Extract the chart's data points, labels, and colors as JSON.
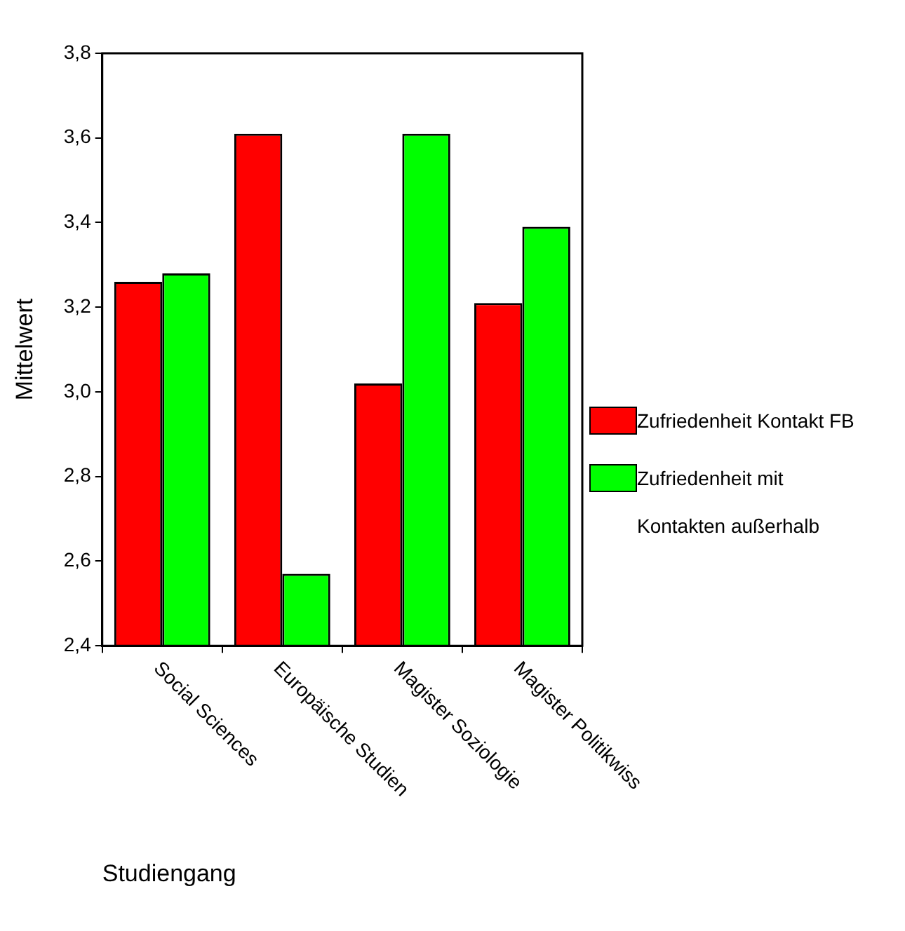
{
  "chart_data": {
    "type": "bar",
    "xlabel": "Studiengang",
    "ylabel": "Mittelwert",
    "categories": [
      "Social Sciences",
      "Europäische Studien",
      "Magister Soziologie",
      "Magister Politikwiss"
    ],
    "series": [
      {
        "name": "Zufriedenheit Kontakt FB",
        "color": "#ff0000",
        "values": [
          3.26,
          3.61,
          3.02,
          3.21
        ]
      },
      {
        "name": "Zufriedenheit mit Kontakten außerhalb",
        "color": "#00ff00",
        "values": [
          3.28,
          2.57,
          3.61,
          3.39
        ]
      }
    ],
    "ylim": [
      2.4,
      3.8
    ],
    "yticks": [
      {
        "value": 2.4,
        "label": "2,4"
      },
      {
        "value": 2.6,
        "label": "2,6"
      },
      {
        "value": 2.8,
        "label": "2,8"
      },
      {
        "value": 3.0,
        "label": "3,0"
      },
      {
        "value": 3.2,
        "label": "3,2"
      },
      {
        "value": 3.4,
        "label": "3,4"
      },
      {
        "value": 3.6,
        "label": "3,6"
      },
      {
        "value": 3.8,
        "label": "3,8"
      }
    ],
    "grid": false,
    "legend": "right"
  }
}
